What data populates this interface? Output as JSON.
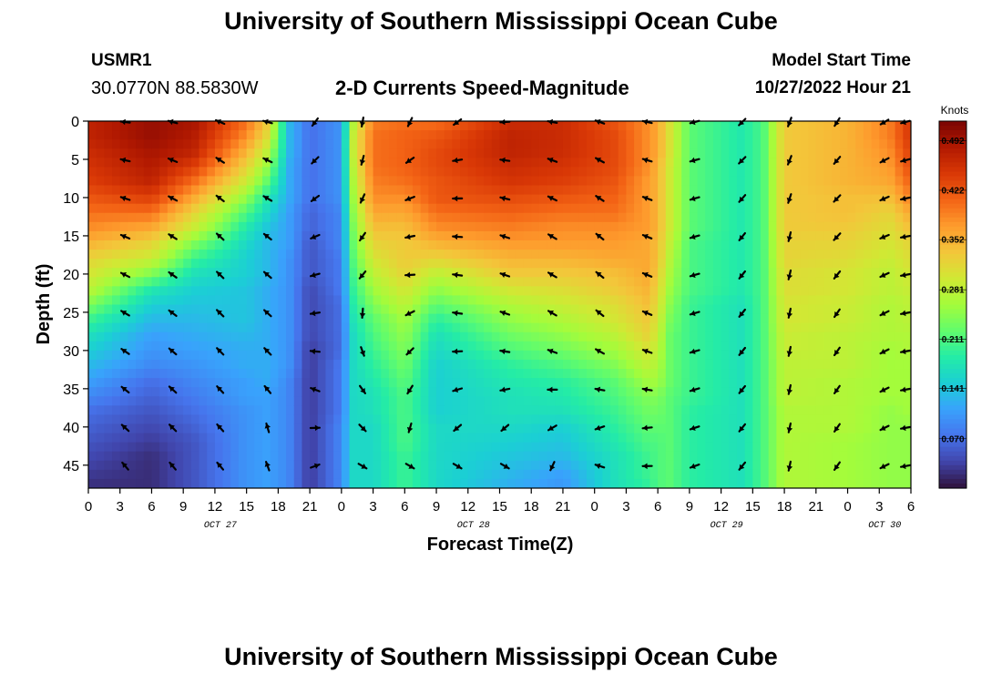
{
  "header": {
    "title": "University of Southern Mississippi Ocean Cube",
    "station_id": "USMR1",
    "coordinates": "30.0770N  88.5830W",
    "subtitle": "2-D Currents Speed-Magnitude",
    "model_start_label": "Model Start Time",
    "model_start_value": "10/27/2022 Hour 21",
    "repeat_title": "University of Southern Mississippi Ocean Cube"
  },
  "chart_data": {
    "type": "heatmap",
    "title": "2-D Currents Speed-Magnitude",
    "xlabel": "Forecast Time(Z)",
    "ylabel": "Depth (ft)",
    "x_hour_ticks": [
      "0",
      "3",
      "6",
      "9",
      "12",
      "15",
      "18",
      "21",
      "0",
      "3",
      "6",
      "9",
      "12",
      "15",
      "18",
      "21",
      "0",
      "3",
      "6",
      "9",
      "12",
      "15",
      "18",
      "21",
      "0",
      "3",
      "6"
    ],
    "date_labels": [
      {
        "text": "OCT 27",
        "hour": 12
      },
      {
        "text": "OCT 28",
        "hour": 36
      },
      {
        "text": "OCT 29",
        "hour": 60
      },
      {
        "text": "OCT 30",
        "hour": 75
      }
    ],
    "xlim_hours": [
      0,
      78
    ],
    "depth_ticks": [
      0,
      5,
      10,
      15,
      20,
      25,
      30,
      35,
      40,
      45
    ],
    "ylim_ft": [
      0,
      48
    ],
    "colorbar": {
      "label": "Knots",
      "ticks": [
        0.07,
        0.141,
        0.211,
        0.281,
        0.352,
        0.422,
        0.492
      ],
      "tick_labels": [
        "0.070",
        "0.141",
        "0.211",
        "0.281",
        "0.352",
        "0.422",
        "0.492"
      ],
      "range": [
        0.0,
        0.52
      ]
    },
    "colormap": [
      "#30123b",
      "#4145ab",
      "#4675ed",
      "#39a2fc",
      "#1bcfd4",
      "#24eca6",
      "#61fc6c",
      "#a4fc3b",
      "#d1e834",
      "#f3c63a",
      "#fe9b2d",
      "#f36315",
      "#d93806",
      "#b11901",
      "#7a0403"
    ],
    "arrow_times_hours": [
      3.5,
      8,
      12.5,
      17,
      21.5,
      26,
      30.5,
      35,
      39.5,
      44,
      48.5,
      53,
      57.5,
      62,
      66.5,
      71,
      75.5,
      78
    ],
    "arrow_depths_ft": [
      0,
      5,
      10,
      15,
      20,
      25,
      30,
      35,
      40,
      45
    ],
    "speed_profiles_knots": [
      {
        "hour": 0,
        "speeds": [
          0.47,
          0.47,
          0.46,
          0.45,
          0.44,
          0.42,
          0.4,
          0.38,
          0.35,
          0.32,
          0.3,
          0.28,
          0.24,
          0.2,
          0.17,
          0.15,
          0.13,
          0.11,
          0.09,
          0.07,
          0.06,
          0.05,
          0.04,
          0.03,
          0.02
        ]
      },
      {
        "hour": 6,
        "speeds": [
          0.5,
          0.5,
          0.49,
          0.48,
          0.47,
          0.44,
          0.4,
          0.36,
          0.32,
          0.29,
          0.24,
          0.18,
          0.15,
          0.13,
          0.11,
          0.1,
          0.09,
          0.07,
          0.06,
          0.05,
          0.04,
          0.03,
          0.02,
          0.02,
          0.02
        ]
      },
      {
        "hour": 10,
        "speeds": [
          0.49,
          0.48,
          0.47,
          0.44,
          0.4,
          0.36,
          0.32,
          0.29,
          0.24,
          0.2,
          0.17,
          0.15,
          0.14,
          0.13,
          0.12,
          0.11,
          0.1,
          0.09,
          0.08,
          0.07,
          0.06,
          0.05,
          0.05,
          0.05,
          0.05
        ]
      },
      {
        "hour": 15,
        "speeds": [
          0.4,
          0.38,
          0.35,
          0.32,
          0.29,
          0.25,
          0.21,
          0.18,
          0.16,
          0.15,
          0.15,
          0.14,
          0.14,
          0.14,
          0.13,
          0.12,
          0.12,
          0.11,
          0.11,
          0.1,
          0.1,
          0.1,
          0.1,
          0.1,
          0.1
        ]
      },
      {
        "hour": 17,
        "speeds": [
          0.33,
          0.31,
          0.28,
          0.25,
          0.22,
          0.18,
          0.16,
          0.14,
          0.13,
          0.13,
          0.13,
          0.12,
          0.12,
          0.12,
          0.12,
          0.12,
          0.12,
          0.12,
          0.11,
          0.11,
          0.11,
          0.11,
          0.11,
          0.11,
          0.11
        ]
      },
      {
        "hour": 19,
        "speeds": [
          0.13,
          0.13,
          0.13,
          0.12,
          0.12,
          0.12,
          0.11,
          0.11,
          0.11,
          0.1,
          0.1,
          0.1,
          0.1,
          0.1,
          0.1,
          0.1,
          0.1,
          0.09,
          0.09,
          0.09,
          0.09,
          0.09,
          0.09,
          0.09,
          0.09
        ]
      },
      {
        "hour": 21,
        "speeds": [
          0.07,
          0.07,
          0.07,
          0.07,
          0.07,
          0.07,
          0.06,
          0.06,
          0.05,
          0.05,
          0.05,
          0.04,
          0.04,
          0.04,
          0.04,
          0.03,
          0.03,
          0.03,
          0.03,
          0.03,
          0.03,
          0.03,
          0.03,
          0.03,
          0.03
        ]
      },
      {
        "hour": 24,
        "speeds": [
          0.1,
          0.1,
          0.1,
          0.1,
          0.1,
          0.1,
          0.09,
          0.09,
          0.09,
          0.08,
          0.08,
          0.08,
          0.07,
          0.07,
          0.07,
          0.07,
          0.08,
          0.08,
          0.08,
          0.08,
          0.09,
          0.09,
          0.09,
          0.09,
          0.09
        ]
      },
      {
        "hour": 25,
        "speeds": [
          0.26,
          0.28,
          0.28,
          0.27,
          0.26,
          0.25,
          0.24,
          0.23,
          0.22,
          0.21,
          0.2,
          0.19,
          0.18,
          0.17,
          0.16,
          0.16,
          0.16,
          0.16,
          0.16,
          0.16,
          0.16,
          0.16,
          0.16,
          0.16,
          0.16
        ]
      },
      {
        "hour": 27,
        "speeds": [
          0.39,
          0.4,
          0.4,
          0.4,
          0.39,
          0.38,
          0.36,
          0.34,
          0.32,
          0.3,
          0.28,
          0.26,
          0.24,
          0.22,
          0.21,
          0.2,
          0.19,
          0.18,
          0.17,
          0.17,
          0.16,
          0.16,
          0.16,
          0.16,
          0.16
        ]
      },
      {
        "hour": 30,
        "speeds": [
          0.4,
          0.41,
          0.41,
          0.41,
          0.4,
          0.38,
          0.36,
          0.34,
          0.33,
          0.33,
          0.32,
          0.3,
          0.28,
          0.26,
          0.25,
          0.24,
          0.23,
          0.22,
          0.21,
          0.21,
          0.21,
          0.21,
          0.2,
          0.2,
          0.2
        ]
      },
      {
        "hour": 33,
        "speeds": [
          0.4,
          0.42,
          0.43,
          0.43,
          0.42,
          0.42,
          0.4,
          0.38,
          0.35,
          0.32,
          0.28,
          0.25,
          0.22,
          0.19,
          0.17,
          0.16,
          0.15,
          0.15,
          0.15,
          0.15,
          0.16,
          0.16,
          0.16,
          0.16,
          0.16
        ]
      },
      {
        "hour": 40,
        "speeds": [
          0.46,
          0.47,
          0.47,
          0.46,
          0.45,
          0.43,
          0.41,
          0.39,
          0.37,
          0.35,
          0.33,
          0.3,
          0.27,
          0.25,
          0.23,
          0.21,
          0.19,
          0.18,
          0.17,
          0.17,
          0.16,
          0.15,
          0.14,
          0.13,
          0.12
        ]
      },
      {
        "hour": 45,
        "speeds": [
          0.46,
          0.46,
          0.46,
          0.45,
          0.44,
          0.42,
          0.4,
          0.38,
          0.37,
          0.35,
          0.33,
          0.31,
          0.29,
          0.27,
          0.25,
          0.23,
          0.21,
          0.19,
          0.18,
          0.17,
          0.15,
          0.14,
          0.13,
          0.11,
          0.1
        ]
      },
      {
        "hour": 50,
        "speeds": [
          0.42,
          0.43,
          0.43,
          0.43,
          0.42,
          0.41,
          0.4,
          0.38,
          0.37,
          0.36,
          0.34,
          0.33,
          0.31,
          0.3,
          0.28,
          0.26,
          0.24,
          0.22,
          0.21,
          0.2,
          0.19,
          0.18,
          0.17,
          0.17,
          0.17
        ]
      },
      {
        "hour": 53,
        "speeds": [
          0.38,
          0.38,
          0.38,
          0.38,
          0.37,
          0.37,
          0.37,
          0.37,
          0.36,
          0.36,
          0.36,
          0.35,
          0.34,
          0.33,
          0.32,
          0.3,
          0.28,
          0.26,
          0.24,
          0.23,
          0.22,
          0.21,
          0.2,
          0.2,
          0.19
        ]
      },
      {
        "hour": 54,
        "speeds": [
          0.36,
          0.36,
          0.36,
          0.35,
          0.35,
          0.35,
          0.35,
          0.35,
          0.34,
          0.34,
          0.33,
          0.32,
          0.31,
          0.3,
          0.29,
          0.28,
          0.27,
          0.26,
          0.24,
          0.23,
          0.22,
          0.21,
          0.21,
          0.21,
          0.21
        ]
      },
      {
        "hour": 55,
        "speeds": [
          0.31,
          0.31,
          0.31,
          0.3,
          0.3,
          0.3,
          0.3,
          0.3,
          0.29,
          0.28,
          0.27,
          0.26,
          0.25,
          0.24,
          0.23,
          0.23,
          0.23,
          0.23,
          0.22,
          0.22,
          0.22,
          0.22,
          0.22,
          0.22,
          0.22
        ]
      },
      {
        "hour": 57,
        "speeds": [
          0.22,
          0.22,
          0.22,
          0.22,
          0.22,
          0.22,
          0.22,
          0.22,
          0.21,
          0.21,
          0.21,
          0.21,
          0.2,
          0.2,
          0.2,
          0.2,
          0.2,
          0.2,
          0.2,
          0.19,
          0.19,
          0.19,
          0.19,
          0.19,
          0.19
        ]
      },
      {
        "hour": 62,
        "speeds": [
          0.18,
          0.18,
          0.18,
          0.18,
          0.18,
          0.18,
          0.18,
          0.18,
          0.18,
          0.18,
          0.18,
          0.18,
          0.17,
          0.17,
          0.17,
          0.17,
          0.17,
          0.17,
          0.17,
          0.17,
          0.17,
          0.17,
          0.17,
          0.17,
          0.17
        ]
      },
      {
        "hour": 64,
        "speeds": [
          0.21,
          0.21,
          0.21,
          0.21,
          0.21,
          0.21,
          0.21,
          0.21,
          0.21,
          0.21,
          0.21,
          0.21,
          0.21,
          0.21,
          0.21,
          0.21,
          0.21,
          0.21,
          0.21,
          0.21,
          0.21,
          0.21,
          0.21,
          0.21,
          0.21
        ]
      },
      {
        "hour": 66,
        "speeds": [
          0.33,
          0.33,
          0.33,
          0.33,
          0.33,
          0.33,
          0.33,
          0.33,
          0.32,
          0.32,
          0.31,
          0.31,
          0.3,
          0.3,
          0.29,
          0.29,
          0.28,
          0.28,
          0.28,
          0.27,
          0.27,
          0.27,
          0.27,
          0.27,
          0.27
        ]
      },
      {
        "hour": 72,
        "speeds": [
          0.35,
          0.35,
          0.35,
          0.35,
          0.35,
          0.34,
          0.34,
          0.33,
          0.32,
          0.31,
          0.3,
          0.3,
          0.29,
          0.29,
          0.28,
          0.28,
          0.28,
          0.27,
          0.27,
          0.27,
          0.27,
          0.26,
          0.26,
          0.26,
          0.26
        ]
      },
      {
        "hour": 76,
        "speeds": [
          0.39,
          0.39,
          0.38,
          0.37,
          0.36,
          0.34,
          0.32,
          0.31,
          0.3,
          0.29,
          0.28,
          0.28,
          0.27,
          0.27,
          0.27,
          0.26,
          0.26,
          0.26,
          0.26,
          0.25,
          0.25,
          0.25,
          0.25,
          0.25,
          0.25
        ]
      },
      {
        "hour": 78,
        "speeds": [
          0.45,
          0.45,
          0.44,
          0.43,
          0.41,
          0.39,
          0.36,
          0.34,
          0.32,
          0.31,
          0.3,
          0.29,
          0.28,
          0.28,
          0.27,
          0.27,
          0.26,
          0.26,
          0.26,
          0.26,
          0.25,
          0.25,
          0.25,
          0.25,
          0.25
        ]
      }
    ],
    "direction_profiles_deg": [
      {
        "hour": 0,
        "deg": [
          270,
          275,
          280,
          285,
          290,
          295,
          300,
          305,
          310,
          320
        ]
      },
      {
        "hour": 16,
        "deg": [
          300,
          310,
          315,
          320,
          320,
          320,
          320,
          320,
          320,
          320
        ]
      },
      {
        "hour": 21,
        "deg": [
          225,
          235,
          245,
          260,
          270,
          280,
          300,
          320,
          80,
          60
        ]
      },
      {
        "hour": 24,
        "deg": [
          180,
          180,
          180,
          180,
          180,
          170,
          150,
          140,
          130,
          120
        ]
      },
      {
        "hour": 28,
        "deg": [
          200,
          210,
          230,
          250,
          260,
          200,
          170,
          150,
          140,
          120
        ]
      },
      {
        "hour": 32,
        "deg": [
          210,
          250,
          260,
          265,
          270,
          270,
          260,
          250,
          230,
          120
        ]
      },
      {
        "hour": 40,
        "deg": [
          270,
          280,
          285,
          290,
          290,
          290,
          280,
          260,
          230,
          120
        ]
      },
      {
        "hour": 48,
        "deg": [
          290,
          300,
          305,
          310,
          310,
          310,
          300,
          280,
          250,
          290
        ]
      },
      {
        "hour": 55,
        "deg": [
          280,
          280,
          285,
          285,
          285,
          285,
          285,
          280,
          270,
          260
        ]
      },
      {
        "hour": 58,
        "deg": [
          250,
          250,
          248,
          248,
          248,
          248,
          248,
          248,
          248,
          248
        ]
      },
      {
        "hour": 66,
        "deg": [
          200,
          200,
          195,
          190,
          190,
          190,
          190,
          190,
          190,
          190
        ]
      },
      {
        "hour": 72,
        "deg": [
          215,
          225,
          230,
          230,
          225,
          220,
          220,
          220,
          220,
          220
        ]
      },
      {
        "hour": 78,
        "deg": [
          255,
          255,
          258,
          260,
          260,
          260,
          260,
          260,
          260,
          260
        ]
      }
    ]
  }
}
